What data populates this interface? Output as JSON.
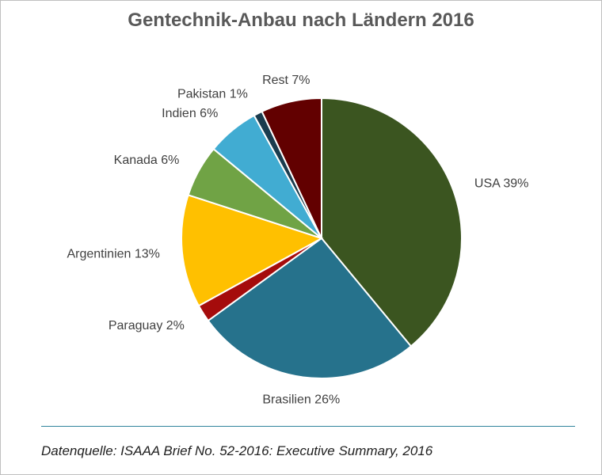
{
  "chart_data": {
    "type": "pie",
    "title": "Gentechnik-Anbau nach Ländern 2016",
    "slices": [
      {
        "name": "USA",
        "value": 39,
        "label": "USA 39%",
        "color": "#3b5520"
      },
      {
        "name": "Brasilien",
        "value": 26,
        "label": "Brasilien 26%",
        "color": "#26728c"
      },
      {
        "name": "Paraguay",
        "value": 2,
        "label": "Paraguay 2%",
        "color": "#a50c0c"
      },
      {
        "name": "Argentinien",
        "value": 13,
        "label": "Argentinien 13%",
        "color": "#ffc000"
      },
      {
        "name": "Kanada",
        "value": 6,
        "label": "Kanada 6%",
        "color": "#70a345"
      },
      {
        "name": "Indien",
        "value": 6,
        "label": "Indien 6%",
        "color": "#41acd2"
      },
      {
        "name": "Pakistan",
        "value": 1,
        "label": "Pakistan 1%",
        "color": "#1a3c4e"
      },
      {
        "name": "Rest",
        "value": 7,
        "label": "Rest 7%",
        "color": "#620000"
      }
    ],
    "legend": "none",
    "source": "Datenquelle: ISAAA Brief No. 52-2016: Executive Summary, 2016"
  }
}
